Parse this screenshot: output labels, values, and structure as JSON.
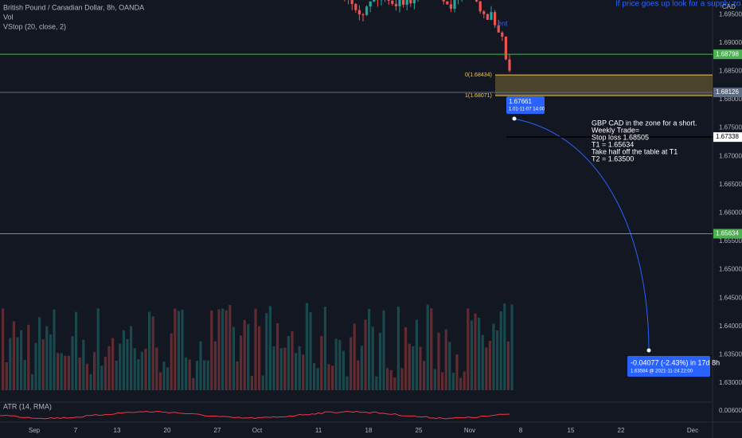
{
  "header": {
    "title": "British Pound / Canadian Dollar, 8h, OANDA",
    "volume": "Vol",
    "indicator": "VStop (20, close, 2)",
    "note": "If price goes up look for a supply zo",
    "currency": "CAD"
  },
  "price_axis": [
    "1.69500",
    "1.69000",
    "1.68500",
    "1.68000",
    "1.67500",
    "1.67000",
    "1.66500",
    "1.66000",
    "1.65500",
    "1.65000",
    "1.64500",
    "1.64000",
    "1.63500",
    "1.63000"
  ],
  "levels": [
    {
      "label": "1.68798",
      "color": "#4caf50"
    },
    {
      "label": "1.68126",
      "color": "#5d6b82"
    },
    {
      "label": "1.67338",
      "color": "#000000"
    },
    {
      "label": "1.65634",
      "color": "#4caf50"
    }
  ],
  "fib": [
    {
      "label": "0(1.68434)",
      "price": "1.68434"
    },
    {
      "label": "1(1.68071)",
      "price": "1.68071"
    }
  ],
  "time_axis": [
    "Sep",
    "7",
    "13",
    "20",
    "27",
    "Oct",
    "11",
    "18",
    "25",
    "Nov",
    "8",
    "15",
    "22",
    "Dec"
  ],
  "entry_tag": "ent",
  "tooltip": {
    "price": "1.67661",
    "time": "1.01-11-07 14:00"
  },
  "annotation": [
    "GBP CAD in the zone for a short.",
    "Weekly Trade=",
    "Stop loss 1.68505",
    "T1 = 1.65634",
    "Take half off the table at  T1",
    "T2 = 1.63500"
  ],
  "measure": {
    "change": "-0.04077 (-2.43%) in 17d 8h",
    "target": "1.63584 @ 2021-11-24  22:00"
  },
  "atr": {
    "label": "ATR (14, RMA)",
    "axis": "0.00600"
  }
}
